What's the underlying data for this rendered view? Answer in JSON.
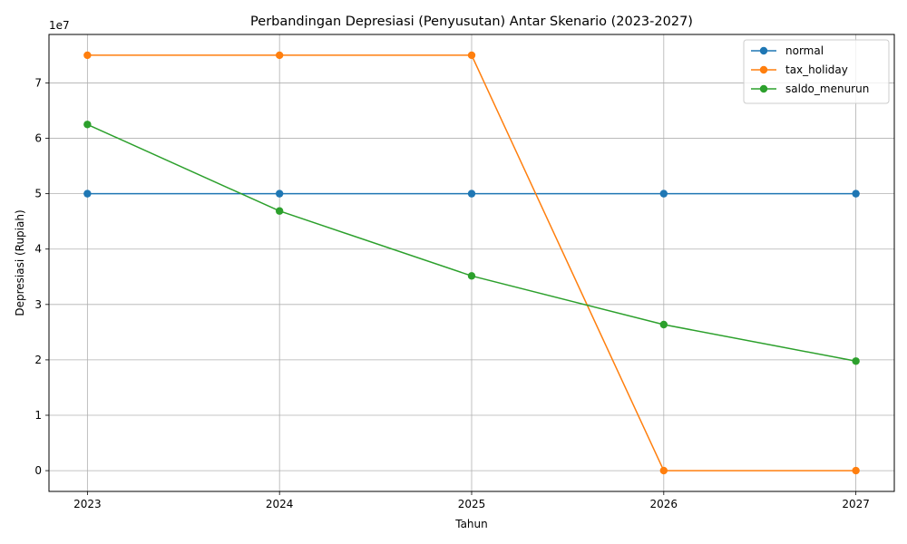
{
  "chart_data": {
    "type": "line",
    "title": "Perbandingan Depresiasi (Penyusutan) Antar Skenario (2023-2027)",
    "xlabel": "Tahun",
    "ylabel": "Depresiasi (Rupiah)",
    "y_offset_label": "1e7",
    "x": [
      2023,
      2024,
      2025,
      2026,
      2027
    ],
    "x_tick_labels": [
      "2023",
      "2024",
      "2025",
      "2026",
      "2027"
    ],
    "y_ticks": [
      0,
      10000000,
      20000000,
      30000000,
      40000000,
      50000000,
      60000000,
      70000000
    ],
    "y_tick_labels": [
      "0",
      "1",
      "2",
      "3",
      "4",
      "5",
      "6",
      "7"
    ],
    "xlim": [
      2022.8,
      2027.2
    ],
    "ylim": [
      -3750000,
      78750000
    ],
    "grid": true,
    "legend_position": "top-right",
    "series": [
      {
        "name": "normal",
        "color": "#1f77b4",
        "values": [
          50000000,
          50000000,
          50000000,
          50000000,
          50000000
        ]
      },
      {
        "name": "tax_holiday",
        "color": "#ff7f0e",
        "values": [
          75000000,
          75000000,
          75000000,
          0,
          0
        ]
      },
      {
        "name": "saldo_menurun",
        "color": "#2ca02c",
        "values": [
          62500000,
          46875000,
          35156250,
          26367187,
          19775390
        ]
      }
    ]
  }
}
